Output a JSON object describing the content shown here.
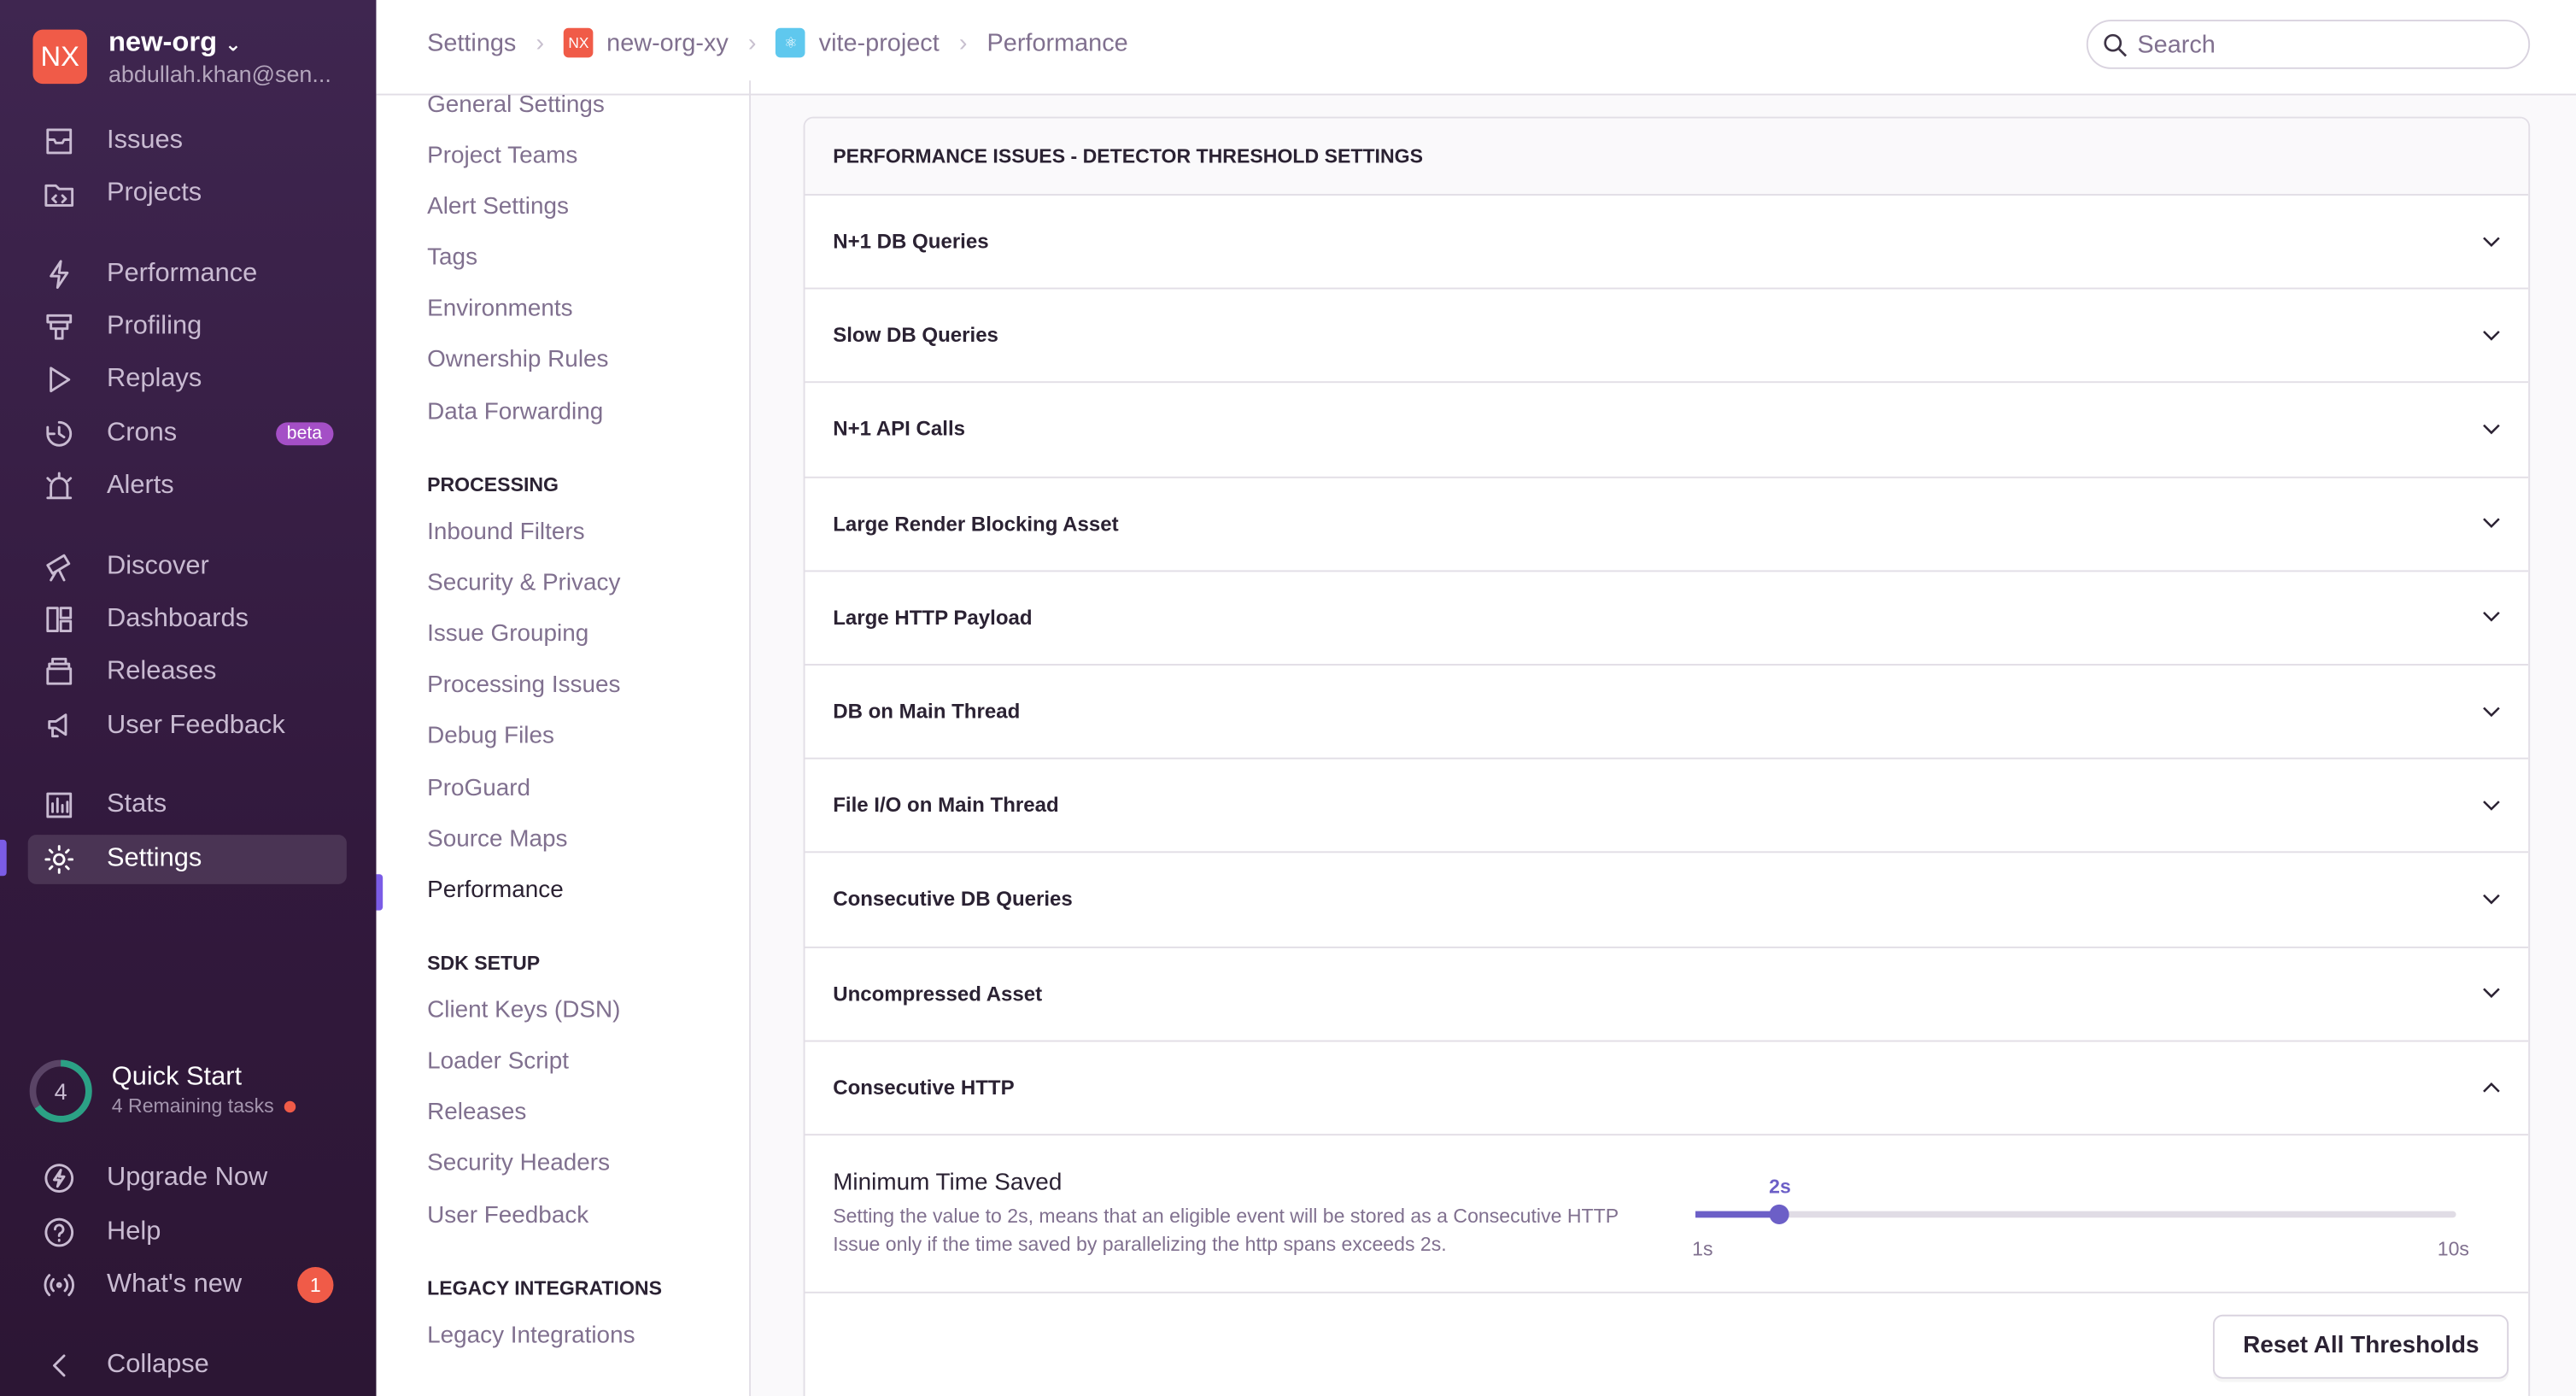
{
  "sidebar": {
    "org_initials": "NX",
    "org_name": "new-org",
    "org_email": "abdullah.khan@sen...",
    "items": [
      {
        "label": "Issues",
        "icon": "issues-icon"
      },
      {
        "label": "Projects",
        "icon": "projects-icon"
      },
      {
        "label": "Performance",
        "icon": "lightning-icon"
      },
      {
        "label": "Profiling",
        "icon": "profiling-icon"
      },
      {
        "label": "Replays",
        "icon": "play-icon"
      },
      {
        "label": "Crons",
        "icon": "clock-icon",
        "badge": "beta"
      },
      {
        "label": "Alerts",
        "icon": "siren-icon"
      },
      {
        "label": "Discover",
        "icon": "telescope-icon"
      },
      {
        "label": "Dashboards",
        "icon": "dashboard-icon"
      },
      {
        "label": "Releases",
        "icon": "package-icon"
      },
      {
        "label": "User Feedback",
        "icon": "megaphone-icon"
      },
      {
        "label": "Stats",
        "icon": "stats-icon"
      },
      {
        "label": "Settings",
        "icon": "gear-icon",
        "active": true
      }
    ],
    "quick_start": {
      "count": "4",
      "title": "Quick Start",
      "subtitle": "4 Remaining tasks"
    },
    "bottom": [
      {
        "label": "Upgrade Now",
        "icon": "upgrade-icon"
      },
      {
        "label": "Help",
        "icon": "help-icon"
      },
      {
        "label": "What's new",
        "icon": "broadcast-icon",
        "badge": "1"
      },
      {
        "label": "Collapse",
        "icon": "chevron-left-icon"
      }
    ]
  },
  "breadcrumb": [
    {
      "label": "Settings"
    },
    {
      "label": "new-org-xy",
      "icon_text": "NX"
    },
    {
      "label": "vite-project"
    },
    {
      "label": "Performance"
    }
  ],
  "search": {
    "placeholder": "Search"
  },
  "settings_nav": [
    {
      "items": [
        "General Settings",
        "Project Teams",
        "Alert Settings",
        "Tags",
        "Environments",
        "Ownership Rules",
        "Data Forwarding"
      ]
    },
    {
      "header": "PROCESSING",
      "items": [
        "Inbound Filters",
        "Security & Privacy",
        "Issue Grouping",
        "Processing Issues",
        "Debug Files",
        "ProGuard",
        "Source Maps",
        "Performance"
      ]
    },
    {
      "header": "SDK SETUP",
      "items": [
        "Client Keys (DSN)",
        "Loader Script",
        "Releases",
        "Security Headers",
        "User Feedback"
      ]
    },
    {
      "header": "LEGACY INTEGRATIONS",
      "items": [
        "Legacy Integrations"
      ]
    }
  ],
  "settings_nav_current": "Performance",
  "panel": {
    "title": "PERFORMANCE ISSUES - DETECTOR THRESHOLD SETTINGS",
    "rows": [
      "N+1 DB Queries",
      "Slow DB Queries",
      "N+1 API Calls",
      "Large Render Blocking Asset",
      "Large HTTP Payload",
      "DB on Main Thread",
      "File I/O on Main Thread",
      "Consecutive DB Queries",
      "Uncompressed Asset",
      "Consecutive HTTP"
    ],
    "expanded_row": "Consecutive HTTP",
    "setting": {
      "title": "Minimum Time Saved",
      "description": "Setting the value to 2s, means that an eligible event will be stored as a Consecutive HTTP Issue only if the time saved by parallelizing the http spans exceeds 2s.",
      "value": 2,
      "value_label": "2s",
      "min": 1,
      "min_label": "1s",
      "max": 10,
      "max_label": "10s"
    },
    "reset_label": "Reset All Thresholds"
  },
  "colors": {
    "accent": "#6c5fc7",
    "sidebar": "#3f2650",
    "org": "#f05b48"
  }
}
